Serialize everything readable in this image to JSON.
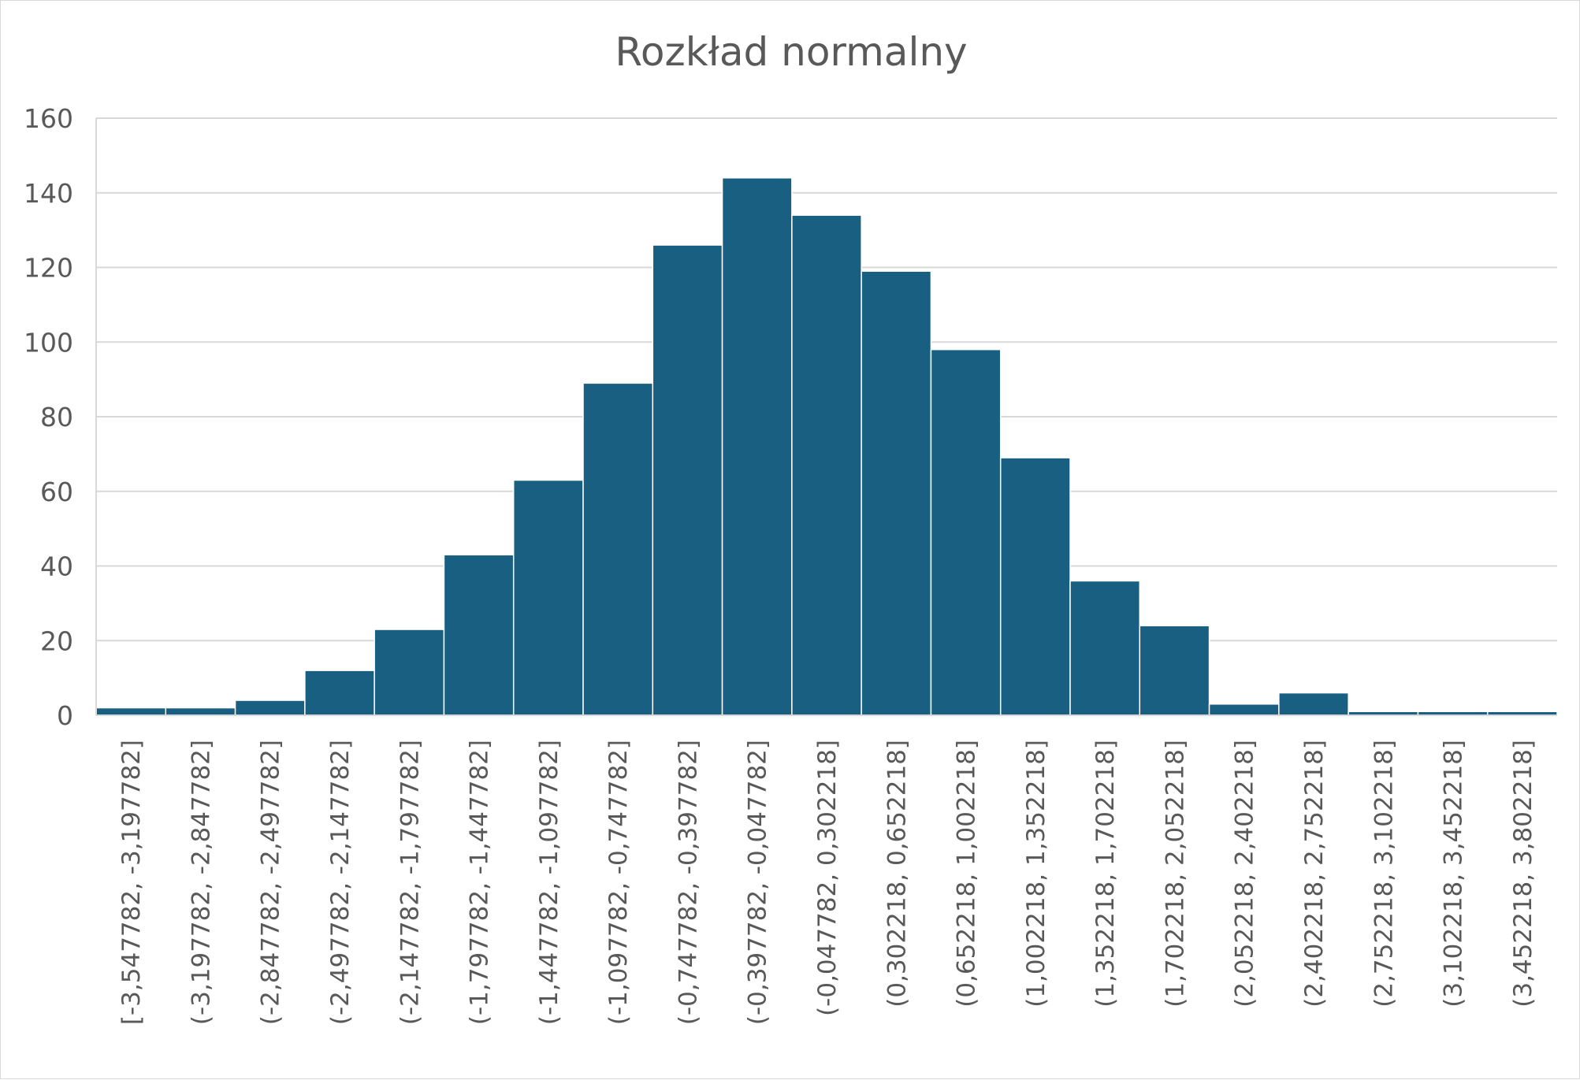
{
  "chart_data": {
    "type": "bar",
    "title": "Rozkład normalny",
    "xlabel": "",
    "ylabel": "",
    "ylim": [
      0,
      160
    ],
    "yticks": [
      "0",
      "20",
      "40",
      "60",
      "80",
      "100",
      "120",
      "140",
      "160"
    ],
    "grid": true,
    "legend": "none",
    "categories": [
      "[-3,547782, -3,197782]",
      "(-3,197782, -2,847782]",
      "(-2,847782, -2,497782]",
      "(-2,497782, -2,147782]",
      "(-2,147782, -1,797782]",
      "(-1,797782, -1,447782]",
      "(-1,447782, -1,097782]",
      "(-1,097782, -0,747782]",
      "(-0,747782, -0,397782]",
      "(-0,397782, -0,047782]",
      "(-0,047782, 0,302218]",
      "(0,302218, 0,652218]",
      "(0,652218, 1,002218]",
      "(1,002218, 1,352218]",
      "(1,352218, 1,702218]",
      "(1,702218, 2,052218]",
      "(2,052218, 2,402218]",
      "(2,402218, 2,752218]",
      "(2,752218, 3,102218]",
      "(3,102218, 3,452218]",
      "(3,452218, 3,802218]"
    ],
    "values": [
      2,
      2,
      4,
      12,
      23,
      43,
      63,
      89,
      126,
      144,
      134,
      119,
      98,
      69,
      36,
      24,
      3,
      6,
      1,
      1,
      1
    ],
    "colors": {
      "bar": "#185f82",
      "bar_border": "#ffffff",
      "grid": "#d9d9d9",
      "text": "#595959"
    }
  }
}
